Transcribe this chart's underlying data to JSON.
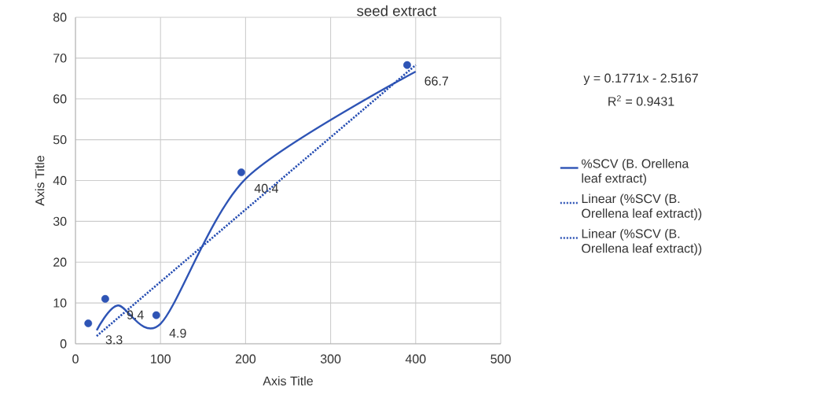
{
  "chart_data": {
    "type": "line",
    "title": "seed extract",
    "xlabel": "Axis Title",
    "ylabel": "Axis Title",
    "xlim": [
      0,
      500
    ],
    "xticks": [
      0,
      100,
      200,
      300,
      400,
      500
    ],
    "ylim": [
      0,
      80
    ],
    "yticks": [
      0,
      10,
      20,
      30,
      40,
      50,
      60,
      70,
      80
    ],
    "grid": true,
    "legend": "right",
    "annotations": [
      "y = 0.1771x - 2.5167",
      "R$^{2}$ = 0.9431"
    ],
    "series": [
      {
        "name": "%SCV (B. Orellena leaf extract)",
        "color": "#2e54b5",
        "x": [
          25,
          50,
          100,
          200,
          400
        ],
        "values": [
          3.3,
          9.4,
          4.9,
          40.4,
          66.7
        ],
        "value_labels": [
          "3.3",
          "9.4",
          "4.9",
          "40.4",
          "66.7"
        ]
      },
      {
        "type": "scatter",
        "marker": "circle",
        "color": "#2e54b5",
        "x": [
          15,
          35,
          95,
          195,
          390
        ],
        "values": [
          5,
          11,
          7,
          42,
          68.3
        ]
      },
      {
        "name": "Linear (%SCV (B. Orellena leaf extract))",
        "line_style": "dotted",
        "color": "#2e54b5",
        "x": [
          25,
          400
        ],
        "values": [
          1.9,
          68.3
        ]
      },
      {
        "name": "Linear (%SCV (B. Orellena leaf extract))",
        "line_style": "dotted",
        "color": "#2e54b5",
        "x": [
          25,
          400
        ],
        "values": [
          1.9,
          68.3
        ]
      }
    ]
  }
}
